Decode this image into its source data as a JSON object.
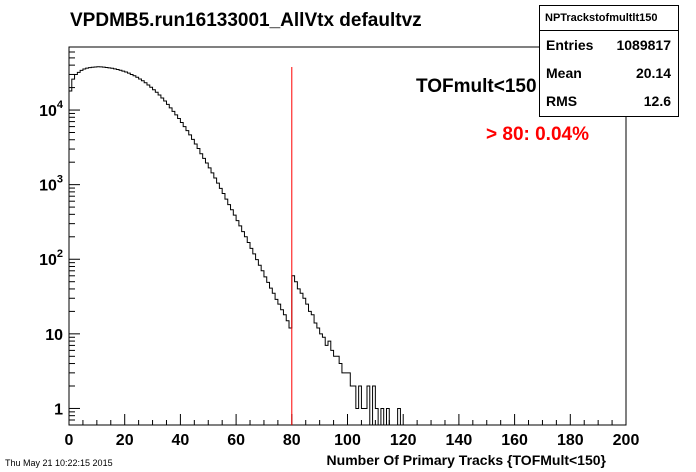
{
  "chart_data": {
    "type": "histogram",
    "title": "VPDMB5.run16133001_AllVtx defaultvz",
    "xlabel": "Number Of Primary Tracks {TOFMult<150}",
    "ylabel": "",
    "xlim": [
      0,
      200
    ],
    "ylim": [
      0.6,
      70000
    ],
    "yscale": "log",
    "x_ticks": [
      "0",
      "20",
      "40",
      "60",
      "80",
      "100",
      "120",
      "140",
      "160",
      "180",
      "200"
    ],
    "y_ticks": [
      {
        "base": "1",
        "exp": ""
      },
      {
        "base": "10",
        "exp": ""
      },
      {
        "base": "10",
        "exp": "2"
      },
      {
        "base": "10",
        "exp": "3"
      },
      {
        "base": "10",
        "exp": "4"
      }
    ],
    "bin_width": 1,
    "bins_x": [
      0,
      1,
      2,
      3,
      4,
      5,
      6,
      7,
      8,
      9,
      10,
      11,
      12,
      13,
      14,
      15,
      16,
      17,
      18,
      19,
      20,
      21,
      22,
      23,
      24,
      25,
      26,
      27,
      28,
      29,
      30,
      31,
      32,
      33,
      34,
      35,
      36,
      37,
      38,
      39,
      40,
      41,
      42,
      43,
      44,
      45,
      46,
      47,
      48,
      49,
      50,
      51,
      52,
      53,
      54,
      55,
      56,
      57,
      58,
      59,
      60,
      61,
      62,
      63,
      64,
      65,
      66,
      67,
      68,
      69,
      70,
      71,
      72,
      73,
      74,
      75,
      76,
      77,
      78,
      79,
      80,
      81,
      82,
      83,
      84,
      85,
      86,
      87,
      88,
      89,
      90,
      91,
      92,
      93,
      94,
      95,
      96,
      97,
      98,
      99,
      100,
      101,
      102,
      103,
      104,
      105,
      106,
      107,
      108,
      109,
      110,
      111,
      112,
      113,
      114,
      115,
      116,
      117,
      118,
      119
    ],
    "values": [
      18000,
      26000,
      30000,
      32000,
      34000,
      35500,
      36500,
      37000,
      37500,
      37800,
      38000,
      37900,
      37600,
      37200,
      36800,
      36300,
      35700,
      35000,
      34200,
      33300,
      32300,
      31200,
      30000,
      28800,
      27500,
      26100,
      24700,
      23200,
      21700,
      20200,
      18700,
      17300,
      15900,
      14500,
      13200,
      11900,
      10700,
      9600,
      8600,
      7700,
      6800,
      6000,
      5300,
      4650,
      4050,
      3500,
      3050,
      2600,
      2250,
      1950,
      1680,
      1440,
      1230,
      1050,
      890,
      760,
      640,
      540,
      460,
      390,
      330,
      280,
      235,
      200,
      168,
      140,
      118,
      99,
      83,
      70,
      58,
      49,
      41,
      35,
      29,
      25,
      21,
      18,
      15,
      12,
      60,
      50,
      40,
      35,
      30,
      25,
      20,
      18,
      14,
      12,
      10,
      9,
      7,
      8,
      6,
      5,
      5,
      4,
      3,
      3,
      3,
      2,
      2,
      1,
      2,
      1,
      1,
      2,
      0,
      2,
      1,
      0,
      1,
      0,
      1,
      0,
      0,
      0,
      1,
      0
    ],
    "annotations": {
      "cut_line_x": 80,
      "cut_label": "TOFmult<150",
      "fraction_label": "> 80: 0.04%"
    },
    "stats": {
      "name": "NPTrackstofmultlt150",
      "rows": [
        {
          "label": "Entries",
          "value": "1089817"
        },
        {
          "label": "Mean",
          "value": "20.14"
        },
        {
          "label": "RMS",
          "value": "12.6"
        }
      ]
    },
    "colors": {
      "histogram": "#000000",
      "cut_line": "#ff0000",
      "fraction_label": "#ff0000"
    }
  },
  "timestamp": "Thu May 21 10:22:15 2015"
}
